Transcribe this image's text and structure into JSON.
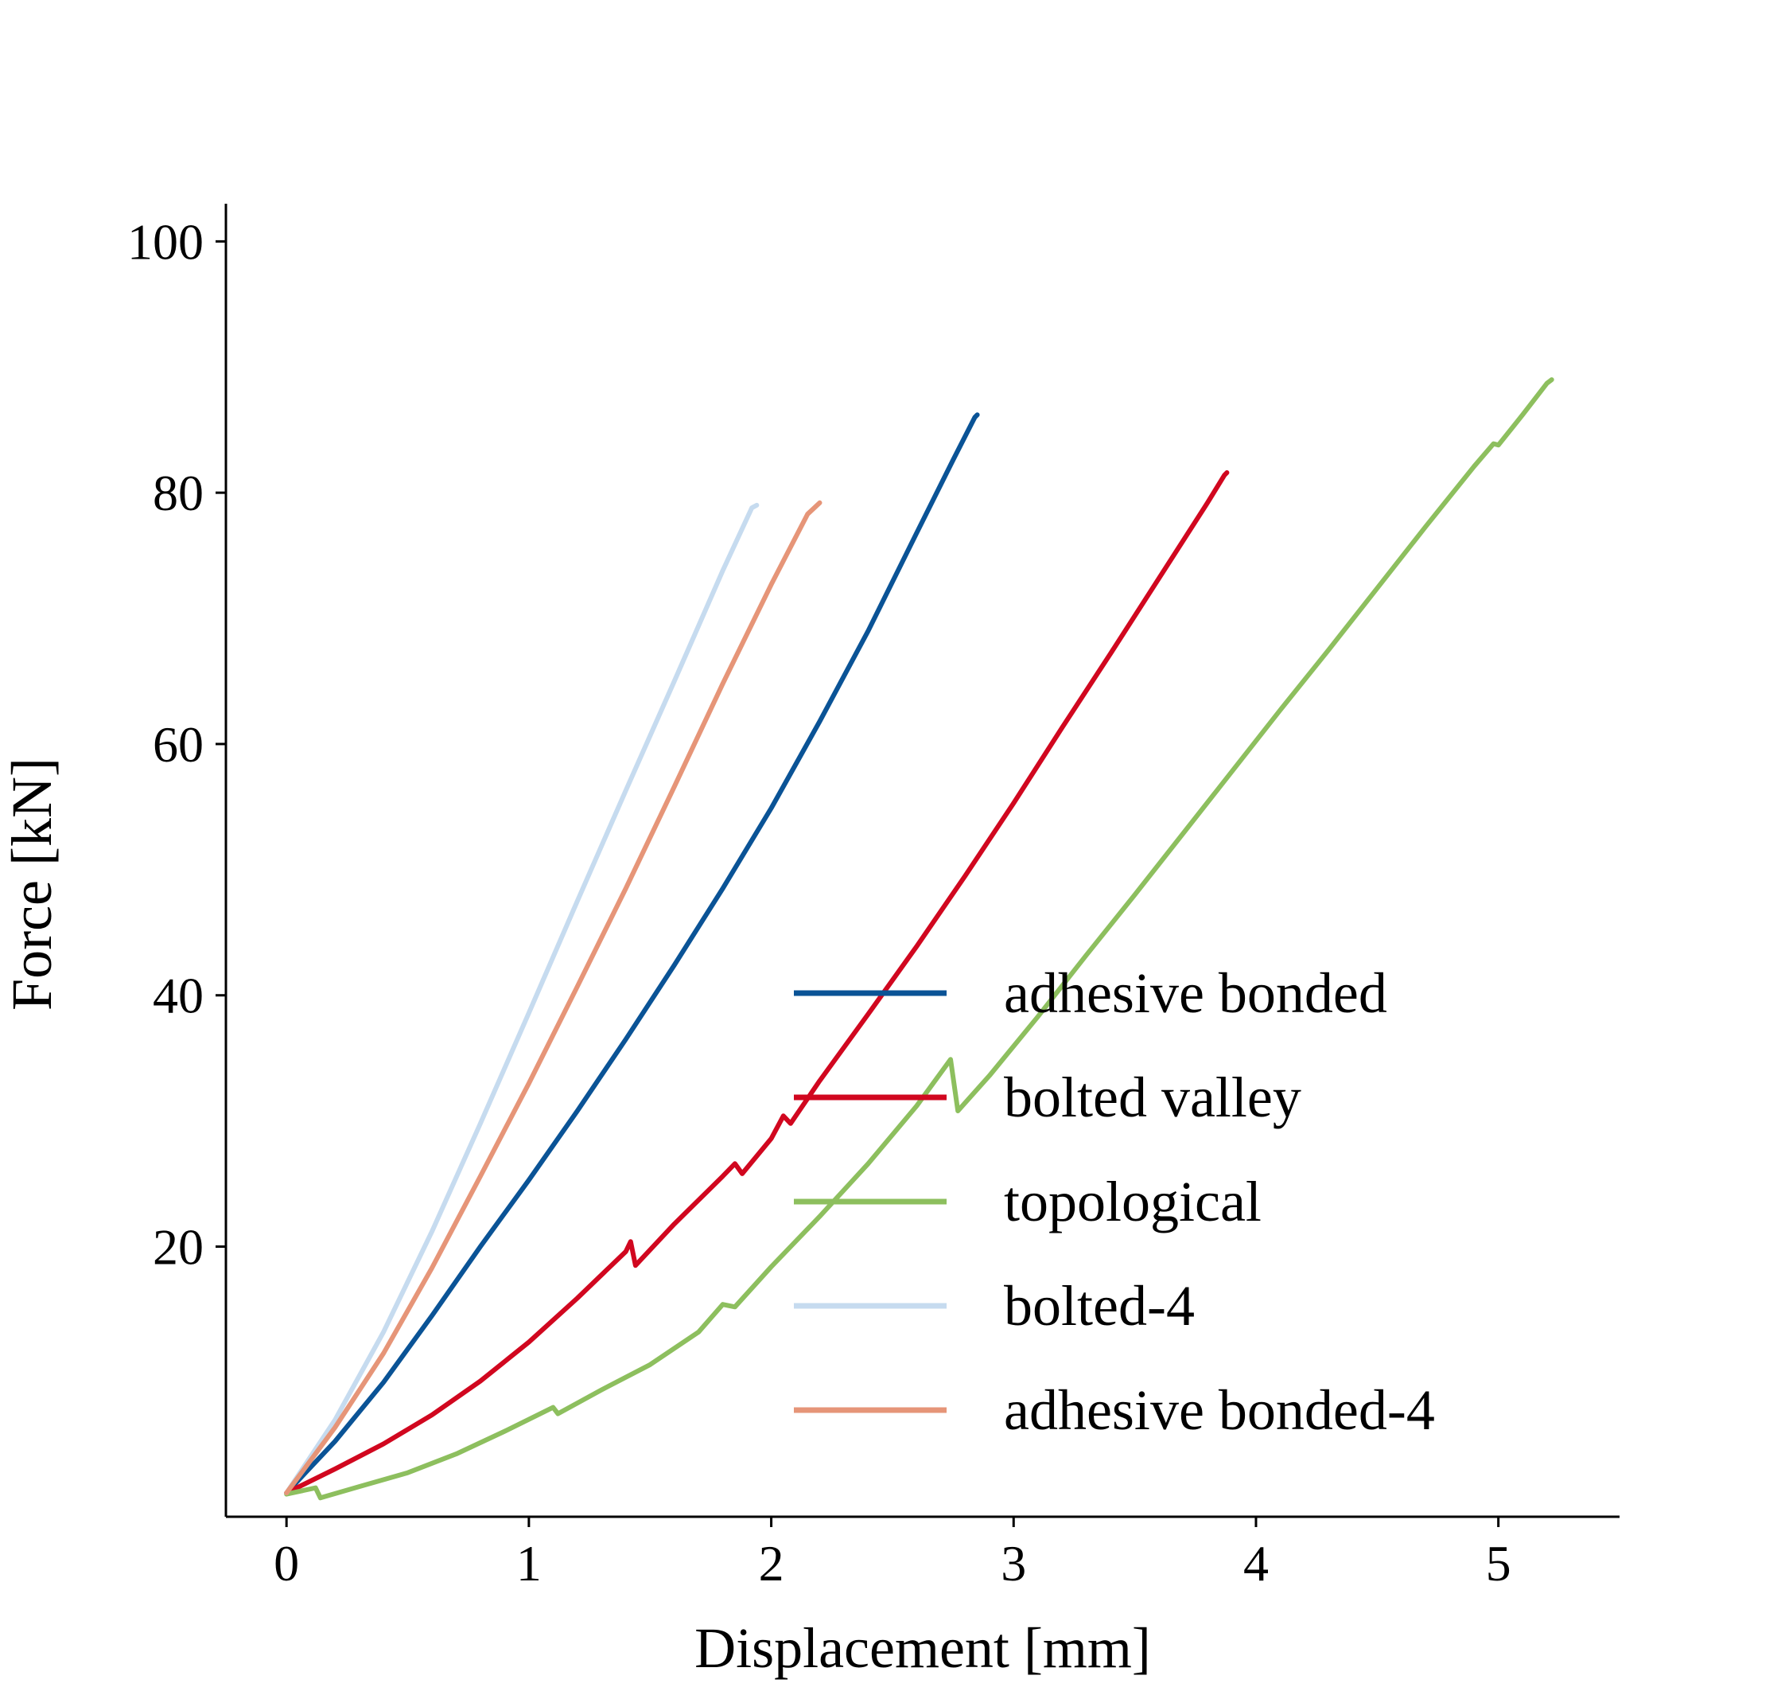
{
  "chart_data": {
    "type": "line",
    "xlabel": "Displacement [mm]",
    "ylabel": "Force [kN]",
    "xlim": [
      -0.25,
      5.5
    ],
    "ylim": [
      -1.5,
      103
    ],
    "xticks": [
      0,
      1,
      2,
      3,
      4,
      5
    ],
    "yticks": [
      20,
      40,
      60,
      80,
      100
    ],
    "xtick_labels": [
      "0",
      "1",
      "2",
      "3",
      "4",
      "5"
    ],
    "ytick_labels": [
      "20",
      "40",
      "60",
      "80",
      "100"
    ],
    "grid": false,
    "legend_position": "lower-right",
    "series": [
      {
        "name": "adhesive bonded",
        "color": "#0a5396",
        "points": [
          [
            0,
            0.4
          ],
          [
            0.2,
            4.5
          ],
          [
            0.4,
            9.2
          ],
          [
            0.6,
            14.5
          ],
          [
            0.8,
            20.0
          ],
          [
            1.0,
            25.3
          ],
          [
            1.2,
            30.8
          ],
          [
            1.4,
            36.5
          ],
          [
            1.6,
            42.4
          ],
          [
            1.8,
            48.5
          ],
          [
            2.0,
            54.9
          ],
          [
            2.2,
            61.8
          ],
          [
            2.4,
            69.0
          ],
          [
            2.6,
            76.8
          ],
          [
            2.75,
            82.6
          ],
          [
            2.84,
            86.0
          ],
          [
            2.85,
            86.2
          ]
        ]
      },
      {
        "name": "bolted valley",
        "color": "#d1071f",
        "points": [
          [
            0,
            0.4
          ],
          [
            0.2,
            2.3
          ],
          [
            0.4,
            4.3
          ],
          [
            0.6,
            6.6
          ],
          [
            0.8,
            9.3
          ],
          [
            1.0,
            12.4
          ],
          [
            1.2,
            15.9
          ],
          [
            1.4,
            19.6
          ],
          [
            1.42,
            20.4
          ],
          [
            1.44,
            18.5
          ],
          [
            1.6,
            21.8
          ],
          [
            1.8,
            25.6
          ],
          [
            1.85,
            26.6
          ],
          [
            1.88,
            25.8
          ],
          [
            2.0,
            28.6
          ],
          [
            2.05,
            30.4
          ],
          [
            2.08,
            29.8
          ],
          [
            2.2,
            33.2
          ],
          [
            2.4,
            38.5
          ],
          [
            2.6,
            43.9
          ],
          [
            2.8,
            49.5
          ],
          [
            3.0,
            55.3
          ],
          [
            3.2,
            61.3
          ],
          [
            3.4,
            67.2
          ],
          [
            3.6,
            73.2
          ],
          [
            3.8,
            79.2
          ],
          [
            3.87,
            81.4
          ],
          [
            3.88,
            81.6
          ]
        ]
      },
      {
        "name": "topological",
        "color": "#8dbf5e",
        "points": [
          [
            0,
            0.3
          ],
          [
            0.12,
            0.8
          ],
          [
            0.14,
            0.0
          ],
          [
            0.3,
            0.9
          ],
          [
            0.5,
            2.0
          ],
          [
            0.7,
            3.5
          ],
          [
            0.9,
            5.3
          ],
          [
            1.1,
            7.2
          ],
          [
            1.12,
            6.7
          ],
          [
            1.3,
            8.6
          ],
          [
            1.5,
            10.6
          ],
          [
            1.7,
            13.2
          ],
          [
            1.8,
            15.4
          ],
          [
            1.85,
            15.2
          ],
          [
            2.0,
            18.4
          ],
          [
            2.2,
            22.4
          ],
          [
            2.4,
            26.6
          ],
          [
            2.6,
            31.2
          ],
          [
            2.74,
            34.9
          ],
          [
            2.77,
            30.8
          ],
          [
            2.9,
            33.6
          ],
          [
            3.1,
            38.3
          ],
          [
            3.3,
            43.2
          ],
          [
            3.5,
            48.0
          ],
          [
            3.7,
            52.9
          ],
          [
            3.9,
            57.8
          ],
          [
            4.1,
            62.7
          ],
          [
            4.3,
            67.5
          ],
          [
            4.5,
            72.4
          ],
          [
            4.7,
            77.3
          ],
          [
            4.9,
            82.1
          ],
          [
            4.98,
            83.9
          ],
          [
            5.0,
            83.8
          ],
          [
            5.1,
            86.2
          ],
          [
            5.2,
            88.7
          ],
          [
            5.22,
            89.0
          ]
        ]
      },
      {
        "name": "bolted-4",
        "color": "#c6dbef",
        "points": [
          [
            0,
            0.4
          ],
          [
            0.2,
            6.2
          ],
          [
            0.4,
            13.2
          ],
          [
            0.6,
            21.2
          ],
          [
            0.8,
            29.8
          ],
          [
            1.0,
            38.6
          ],
          [
            1.2,
            47.5
          ],
          [
            1.4,
            56.3
          ],
          [
            1.6,
            65.0
          ],
          [
            1.8,
            73.8
          ],
          [
            1.92,
            78.8
          ],
          [
            1.94,
            79.0
          ]
        ]
      },
      {
        "name": "adhesive bonded-4",
        "color": "#e69578",
        "points": [
          [
            0,
            0.4
          ],
          [
            0.2,
            5.6
          ],
          [
            0.4,
            11.5
          ],
          [
            0.6,
            18.3
          ],
          [
            0.8,
            25.6
          ],
          [
            1.0,
            33.0
          ],
          [
            1.2,
            40.7
          ],
          [
            1.4,
            48.5
          ],
          [
            1.6,
            56.6
          ],
          [
            1.8,
            64.8
          ],
          [
            2.0,
            72.7
          ],
          [
            2.15,
            78.3
          ],
          [
            2.2,
            79.2
          ]
        ]
      }
    ]
  }
}
